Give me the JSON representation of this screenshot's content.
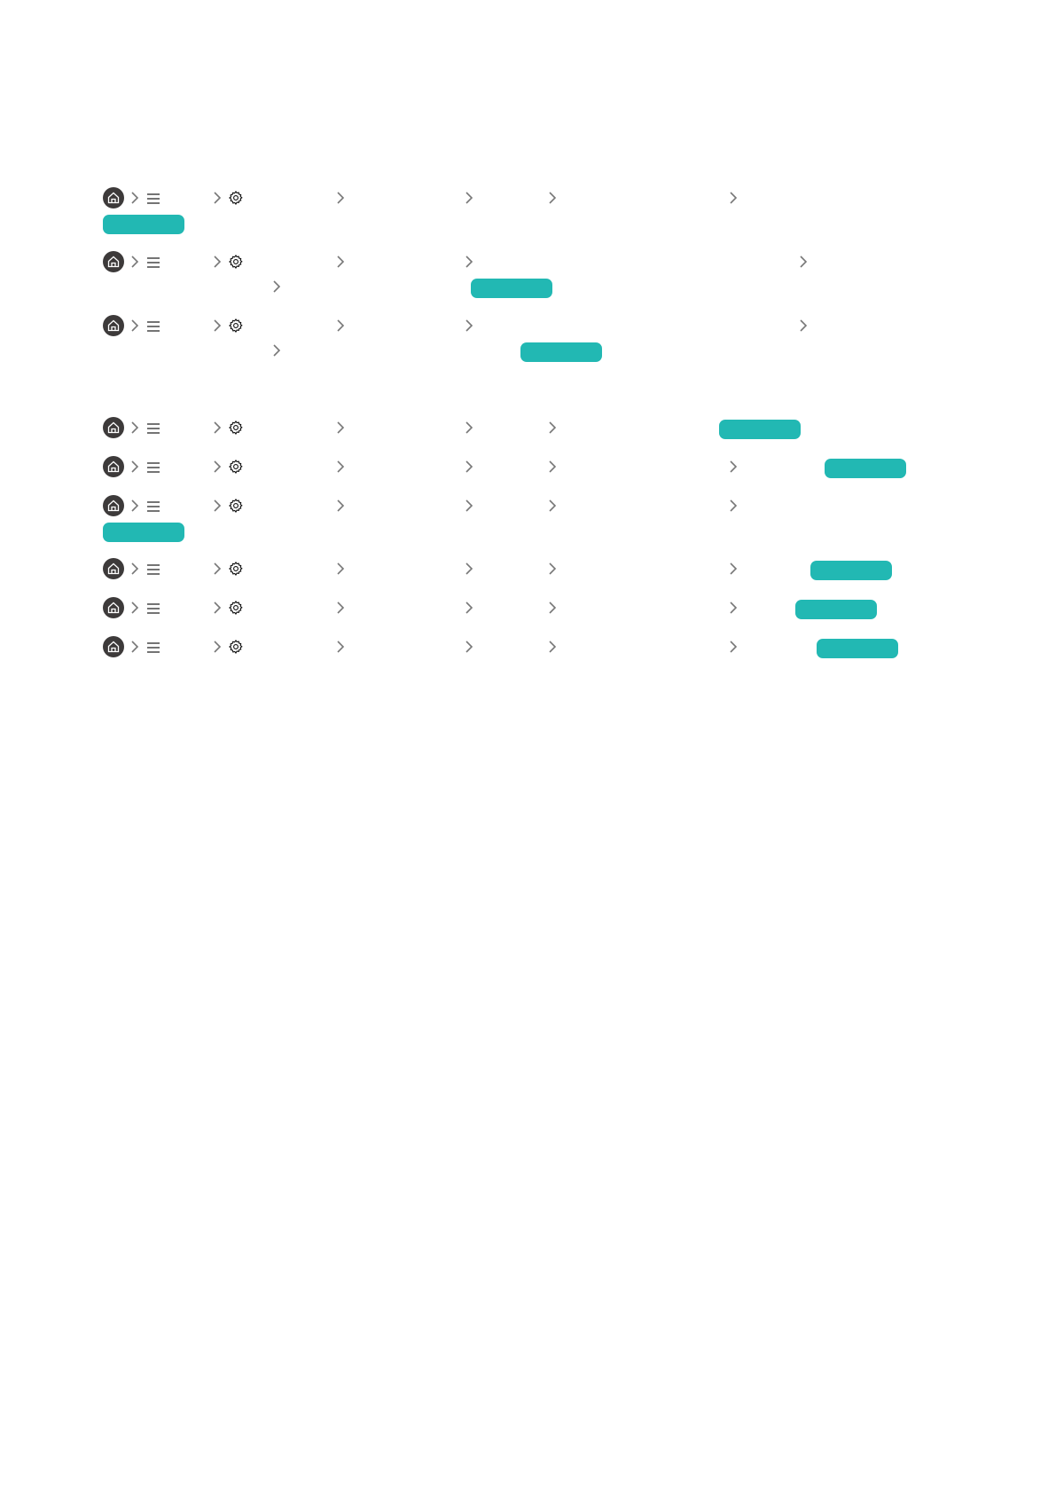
{
  "colors": {
    "accent": "#22b8b3",
    "home_bg": "#3d3a3a",
    "chevron": "#777777"
  },
  "icons": {
    "home": "home-icon",
    "menu": "menu-icon",
    "settings": "gear-icon",
    "separator": "chevron-right-icon"
  },
  "paths": [
    {
      "steps": [
        "",
        "",
        "",
        "",
        "",
        ""
      ],
      "highlight": ""
    },
    {
      "steps": [
        "",
        "",
        "",
        "",
        "",
        ""
      ],
      "highlight": ""
    },
    {
      "steps": [
        "",
        "",
        "",
        "",
        "",
        ""
      ],
      "highlight": ""
    },
    {
      "steps": [
        "",
        "",
        "",
        "",
        ""
      ],
      "highlight": ""
    },
    {
      "steps": [
        "",
        "",
        "",
        "",
        "",
        ""
      ],
      "highlight": ""
    },
    {
      "steps": [
        "",
        "",
        "",
        "",
        "",
        ""
      ],
      "highlight": ""
    },
    {
      "steps": [
        "",
        "",
        "",
        "",
        "",
        ""
      ],
      "highlight": ""
    },
    {
      "steps": [
        "",
        "",
        "",
        "",
        "",
        ""
      ],
      "highlight": ""
    },
    {
      "steps": [
        "",
        "",
        "",
        "",
        "",
        ""
      ],
      "highlight": ""
    }
  ]
}
